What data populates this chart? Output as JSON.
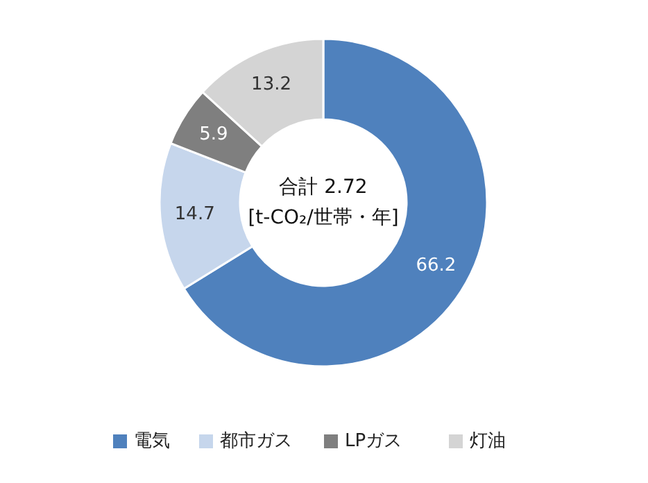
{
  "chart_data": {
    "type": "donut",
    "categories": [
      "電気",
      "都市ガス",
      "LPガス",
      "灯油"
    ],
    "values": [
      66.2,
      14.7,
      5.9,
      13.2
    ],
    "colors": [
      "#4f81bd",
      "#c6d6ec",
      "#7f7f7f",
      "#d4d4d4"
    ],
    "data_labels": true,
    "legend": "bottom",
    "annotations": [
      "合計 2.72",
      "[t-CO₂/世帯・年]"
    ]
  }
}
